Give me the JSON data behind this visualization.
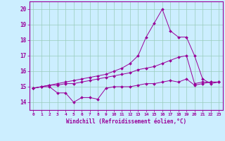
{
  "title": "",
  "xlabel": "Windchill (Refroidissement éolien,°C)",
  "ylabel": "",
  "bg_color": "#cceeff",
  "line_color": "#990099",
  "grid_color": "#99ccbb",
  "xlim": [
    -0.5,
    23.5
  ],
  "ylim": [
    13.5,
    20.5
  ],
  "yticks": [
    14,
    15,
    16,
    17,
    18,
    19,
    20
  ],
  "xticks": [
    0,
    1,
    2,
    3,
    4,
    5,
    6,
    7,
    8,
    9,
    10,
    11,
    12,
    13,
    14,
    15,
    16,
    17,
    18,
    19,
    20,
    21,
    22,
    23
  ],
  "series": [
    [
      14.9,
      15.0,
      15.0,
      14.6,
      14.6,
      14.0,
      14.3,
      14.3,
      14.2,
      14.9,
      15.0,
      15.0,
      15.0,
      15.1,
      15.2,
      15.2,
      15.3,
      15.4,
      15.3,
      15.5,
      15.1,
      15.2,
      15.3,
      15.3
    ],
    [
      14.9,
      15.0,
      15.1,
      15.1,
      15.2,
      15.2,
      15.3,
      15.4,
      15.5,
      15.6,
      15.7,
      15.8,
      15.9,
      16.1,
      16.2,
      16.3,
      16.5,
      16.7,
      16.9,
      17.0,
      15.2,
      15.3,
      15.3,
      15.3
    ],
    [
      14.9,
      15.0,
      15.1,
      15.2,
      15.3,
      15.4,
      15.5,
      15.6,
      15.7,
      15.8,
      16.0,
      16.2,
      16.5,
      17.0,
      18.2,
      19.1,
      20.0,
      18.6,
      18.2,
      18.2,
      17.0,
      15.5,
      15.2,
      15.3
    ]
  ]
}
